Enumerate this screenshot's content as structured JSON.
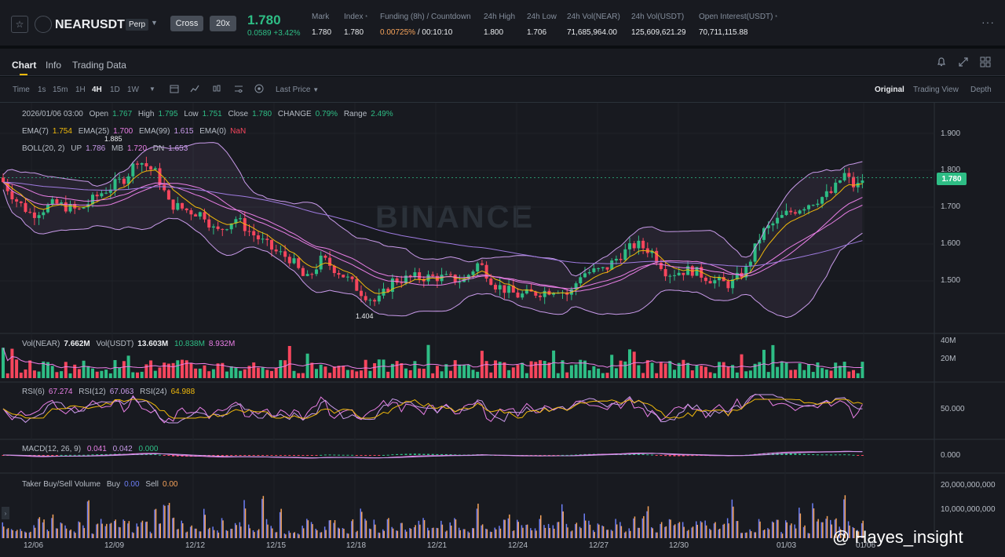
{
  "header": {
    "symbol": "NEARUSDT",
    "contract_type": "Perp",
    "margin_mode": "Cross",
    "leverage": "20x",
    "last_price": "1.780",
    "change": "0.0589 +3.42%",
    "stats": [
      {
        "label": "Mark",
        "value": "1.780"
      },
      {
        "label": "Index",
        "value": "1.780"
      },
      {
        "label": "Funding (8h) / Countdown",
        "value_a": "0.00725%",
        "value_b": "/ 00:10:10"
      },
      {
        "label": "24h High",
        "value": "1.800"
      },
      {
        "label": "24h Low",
        "value": "1.706"
      },
      {
        "label": "24h Vol(NEAR)",
        "value": "71,685,964.00"
      },
      {
        "label": "24h Vol(USDT)",
        "value": "125,609,621.29"
      },
      {
        "label": "Open Interest(USDT)",
        "value": "70,711,115.88"
      }
    ]
  },
  "tabs": [
    "Chart",
    "Info",
    "Trading Data"
  ],
  "toolbar": {
    "time_label": "Time",
    "intervals": [
      "1s",
      "15m",
      "1H",
      "4H",
      "1D",
      "1W"
    ],
    "active_interval": "4H",
    "price_source": "Last Price",
    "views": [
      "Original",
      "Trading View",
      "Depth"
    ]
  },
  "ohlc": {
    "date": "2026/01/06 03:00",
    "open_lbl": "Open",
    "open": "1.767",
    "high_lbl": "High",
    "high": "1.795",
    "low_lbl": "Low",
    "low": "1.751",
    "close_lbl": "Close",
    "close": "1.780",
    "change_lbl": "CHANGE",
    "change": "0.79%",
    "range_lbl": "Range",
    "range": "2.49%"
  },
  "ema": {
    "ema7_lbl": "EMA(7)",
    "ema7": "1.754",
    "ema25_lbl": "EMA(25)",
    "ema25": "1.700",
    "ema99_lbl": "EMA(99)",
    "ema99": "1.615",
    "ema0_lbl": "EMA(0)",
    "ema0": "NaN"
  },
  "boll": {
    "lbl": "BOLL(20, 2)",
    "up_lbl": "UP",
    "up": "1.786",
    "mb_lbl": "MB",
    "mb": "1.720",
    "dn_lbl": "DN",
    "dn": "1.653"
  },
  "volume": {
    "lbl_near": "Vol(NEAR)",
    "near": "7.662M",
    "lbl_usdt": "Vol(USDT)",
    "usdt": "13.603M",
    "ma1": "10.838M",
    "ma2": "8.932M"
  },
  "rsi": {
    "rsi6_lbl": "RSI(6)",
    "rsi6": "67.274",
    "rsi12_lbl": "RSI(12)",
    "rsi12": "67.063",
    "rsi24_lbl": "RSI(24)",
    "rsi24": "64.988"
  },
  "macd": {
    "lbl": "MACD(12, 26, 9)",
    "v1": "0.041",
    "v2": "0.042",
    "v3": "0.000"
  },
  "taker": {
    "lbl": "Taker Buy/Sell Volume",
    "buy_lbl": "Buy",
    "buy": "0.00",
    "sell_lbl": "Sell",
    "sell": "0.00"
  },
  "price_axis": [
    "1.900",
    "1.800",
    "1.700",
    "1.600",
    "1.500"
  ],
  "current_price_tag": "1.780",
  "high_marker": "1.885",
  "low_marker": "1.404",
  "vol_axis": [
    "40M",
    "20M"
  ],
  "rsi_axis": "50.000",
  "macd_axis": "0.000",
  "taker_axis": [
    "20,000,000,000",
    "10,000,000,000"
  ],
  "dates": [
    "12/06",
    "12/09",
    "12/12",
    "12/15",
    "12/18",
    "12/21",
    "12/24",
    "12/27",
    "12/30",
    "01/03",
    "01/06"
  ],
  "watermark": "BINANCE",
  "credit": "@ Hayes_insight",
  "colors": {
    "up": "#2ebd85",
    "down": "#f6465d",
    "accent": "#f0b90b"
  }
}
